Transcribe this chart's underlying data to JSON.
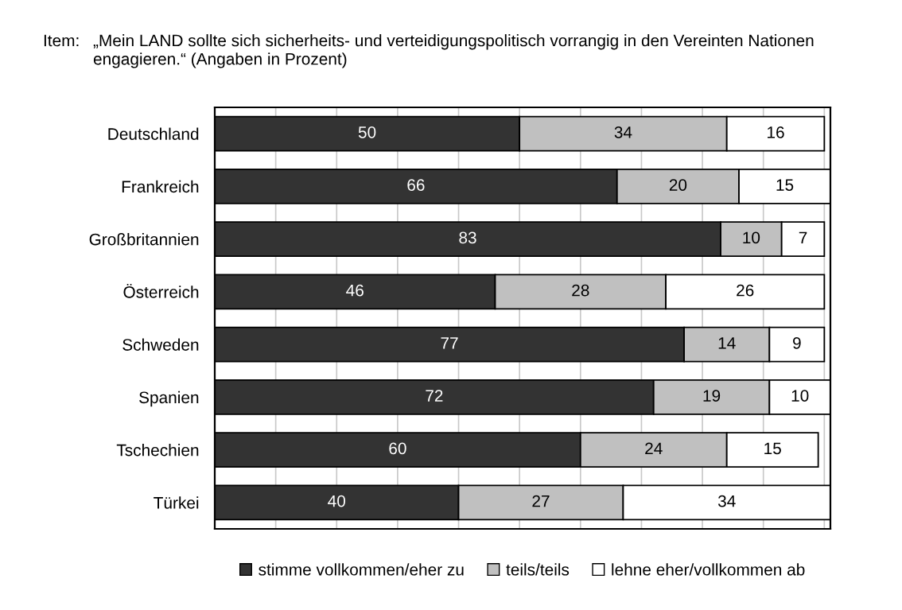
{
  "chart_data": {
    "type": "bar",
    "orientation": "horizontal",
    "stacked": true,
    "title": "Item:",
    "subtitle": "„Mein LAND sollte sich sicherheits- und verteidigungspolitisch vorrangig in den Vereinten Nationen\nengagieren.“ (Angaben in Prozent)",
    "categories": [
      "Deutschland",
      "Frankreich",
      "Großbritannien",
      "Österreich",
      "Schweden",
      "Spanien",
      "Tschechien",
      "Türkei"
    ],
    "series": [
      {
        "name": "stimme vollkommen/eher zu",
        "color": "#333333",
        "values": [
          50,
          66,
          83,
          46,
          77,
          72,
          60,
          40
        ]
      },
      {
        "name": "teils/teils",
        "color": "#c0c0c0",
        "values": [
          34,
          20,
          10,
          28,
          14,
          19,
          24,
          27
        ]
      },
      {
        "name": "lehne eher/vollkommen ab",
        "color": "#ffffff",
        "values": [
          16,
          15,
          7,
          26,
          9,
          10,
          15,
          34
        ]
      }
    ],
    "xlim": [
      0,
      101
    ],
    "xticks": [
      {
        "value": 0,
        "label": null
      },
      {
        "value": 10,
        "label": null
      },
      {
        "value": 20,
        "label": null
      },
      {
        "value": 30,
        "label": null
      },
      {
        "value": 40,
        "label": null
      },
      {
        "value": 50,
        "label": null
      },
      {
        "value": 60,
        "label": null
      },
      {
        "value": 70,
        "label": null
      },
      {
        "value": 80,
        "label": null
      },
      {
        "value": 90,
        "label": null
      },
      {
        "value": 100,
        "label": null
      }
    ],
    "tick_labels": "y",
    "grid": "x",
    "data_labels": true,
    "legend": "bottom"
  }
}
